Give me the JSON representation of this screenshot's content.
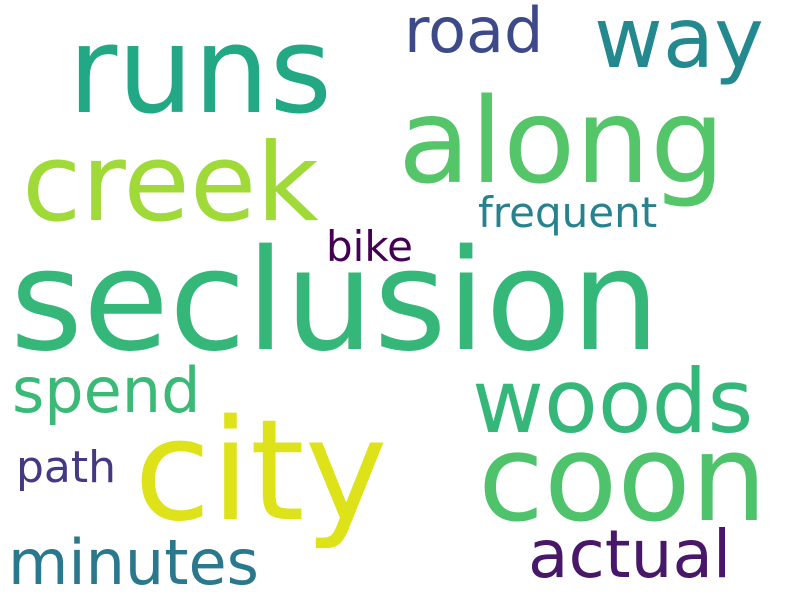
{
  "words": [
    {
      "id": "runs",
      "text": "runs",
      "color": "#22a884"
    },
    {
      "id": "way",
      "text": "way",
      "color": "#23898e"
    },
    {
      "id": "road",
      "text": "road",
      "color": "#3e4989"
    },
    {
      "id": "along",
      "text": "along",
      "color": "#54c568"
    },
    {
      "id": "creek",
      "text": "creek",
      "color": "#a0da39"
    },
    {
      "id": "frequent",
      "text": "frequent",
      "color": "#26828e"
    },
    {
      "id": "bike",
      "text": "bike",
      "color": "#440154"
    },
    {
      "id": "seclusion",
      "text": "seclusion",
      "color": "#35b779"
    },
    {
      "id": "spend",
      "text": "spend",
      "color": "#3aba76"
    },
    {
      "id": "woods",
      "text": "woods",
      "color": "#35b779"
    },
    {
      "id": "path",
      "text": "path",
      "color": "#443a83"
    },
    {
      "id": "city",
      "text": "city",
      "color": "#dde318"
    },
    {
      "id": "coon",
      "text": "coon",
      "color": "#4ec36b"
    },
    {
      "id": "minutes",
      "text": "minutes",
      "color": "#2a788e"
    },
    {
      "id": "actual",
      "text": "actual",
      "color": "#481769"
    }
  ]
}
